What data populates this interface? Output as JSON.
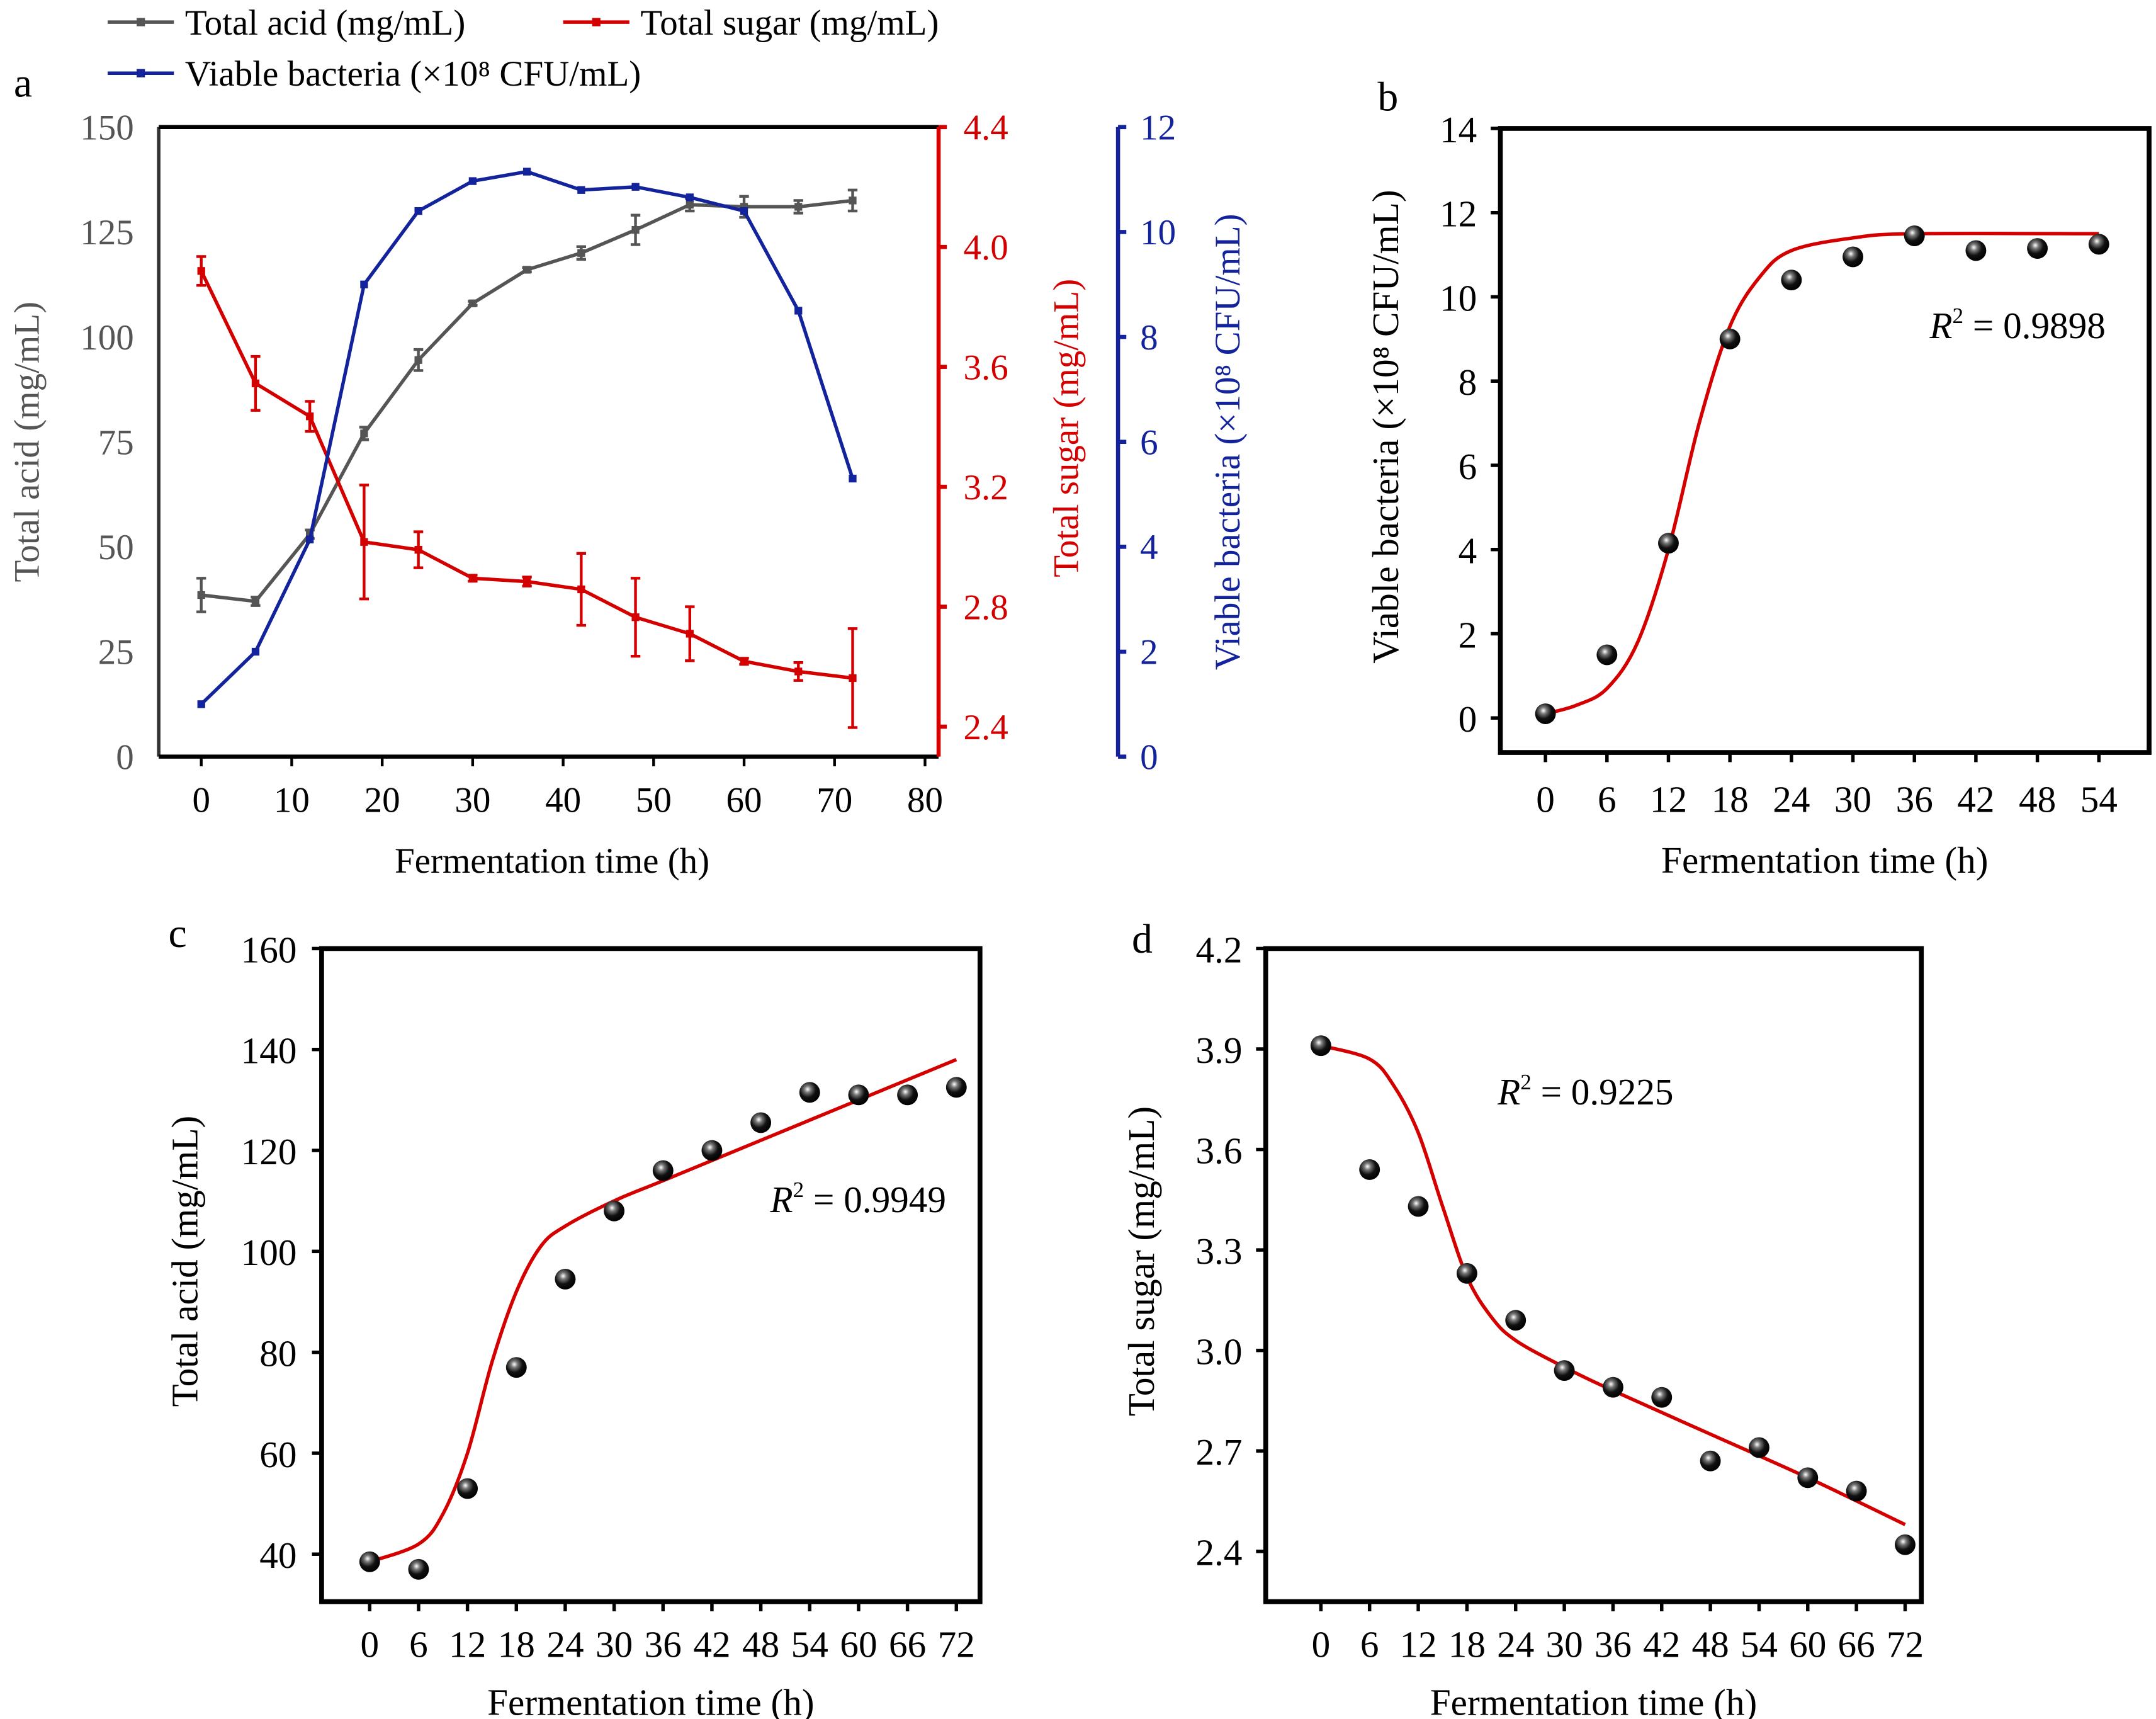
{
  "colors": {
    "acid": "#555555",
    "sugar": "#d40000",
    "bacteria": "#13239c",
    "fit": "#d40000",
    "axis": "#000000"
  },
  "chart_data": [
    {
      "panel": "a",
      "type": "line",
      "xlabel": "Fermentation time (h)",
      "xlim": [
        -4.7,
        81.5
      ],
      "xticks": [
        0,
        10,
        20,
        30,
        40,
        50,
        60,
        70,
        80
      ],
      "x": [
        0,
        6,
        12,
        18,
        24,
        30,
        36,
        42,
        48,
        54,
        60,
        66,
        72
      ],
      "legend": {
        "placement": "top-left"
      },
      "series": [
        {
          "name": "Total acid (mg/mL)",
          "axis": "left",
          "color": "#555555",
          "ylabel": "Total acid (mg/mL)",
          "ylim": [
            0,
            150
          ],
          "yticks": [
            0,
            25,
            50,
            75,
            100,
            125,
            150
          ],
          "values": [
            38.5,
            37,
            53,
            77,
            94.5,
            108,
            116,
            120,
            125.5,
            131.5,
            131,
            131,
            132.5
          ],
          "errors": [
            4,
            1,
            1,
            1.5,
            2.5,
            0.5,
            0.5,
            1.5,
            3.5,
            1.5,
            2.5,
            1.5,
            2.5
          ]
        },
        {
          "name": "Total sugar (mg/mL)",
          "axis": "right-1",
          "color": "#d40000",
          "ylabel": "Total sugar (mg/mL)",
          "ylim": [
            2.3,
            4.4
          ],
          "yticks": [
            "2.4",
            "2.8",
            "3.2",
            "3.6",
            "4.0",
            "4.4"
          ],
          "values": [
            3.92,
            3.545,
            3.435,
            3.016,
            2.99,
            2.895,
            2.884,
            2.858,
            2.765,
            2.71,
            2.618,
            2.584,
            2.562
          ],
          "errors": [
            0.048,
            0.09,
            0.05,
            0.19,
            0.06,
            0.01,
            0.015,
            0.12,
            0.13,
            0.09,
            0.01,
            0.03,
            0.165
          ]
        },
        {
          "name": "Viable bacteria (×10⁸ CFU/mL)",
          "axis": "right-2",
          "color": "#13239c",
          "ylabel": "Viable bacteria (×10⁸ CFU/mL)",
          "ylim": [
            0,
            12
          ],
          "yticks": [
            0,
            2,
            4,
            6,
            8,
            10,
            12
          ],
          "values": [
            1.0,
            2.0,
            4.14,
            9.0,
            10.4,
            10.97,
            11.15,
            10.8,
            10.86,
            10.66,
            10.4,
            8.5,
            5.3
          ]
        }
      ]
    },
    {
      "panel": "b",
      "type": "scatter",
      "xlabel": "Fermentation time (h)",
      "ylabel": "Viable bacteria (×10⁸ CFU/mL)",
      "xlim": [
        -4.4,
        58.9
      ],
      "ylim": [
        -0.82,
        14
      ],
      "xticks": [
        0,
        6,
        12,
        18,
        24,
        30,
        36,
        42,
        48,
        54
      ],
      "yticks": [
        0,
        2,
        4,
        6,
        8,
        10,
        12,
        14
      ],
      "x": [
        0,
        6,
        12,
        18,
        24,
        30,
        36,
        42,
        48,
        54
      ],
      "values": [
        0.1,
        1.5,
        4.15,
        9.0,
        10.4,
        10.95,
        11.45,
        11.1,
        11.15,
        11.25
      ],
      "fit": {
        "x": [
          0,
          3,
          6,
          9,
          12,
          15,
          18,
          21,
          24,
          30,
          36,
          54
        ],
        "y": [
          0.1,
          0.3,
          0.7,
          1.8,
          4.0,
          7.0,
          9.3,
          10.5,
          11.1,
          11.4,
          11.5,
          11.5
        ]
      },
      "annotation": {
        "r_label": "R",
        "sup": "2",
        "value": " = 0.9898"
      }
    },
    {
      "panel": "c",
      "type": "scatter",
      "xlabel": "Fermentation time (h)",
      "ylabel": "Total acid (mg/mL)",
      "xlim": [
        -5.9,
        74.9
      ],
      "ylim": [
        30.6,
        160
      ],
      "xticks": [
        0,
        6,
        12,
        18,
        24,
        30,
        36,
        42,
        48,
        54,
        60,
        66,
        72
      ],
      "yticks": [
        40,
        60,
        80,
        100,
        120,
        140,
        160
      ],
      "x": [
        0,
        6,
        12,
        18,
        24,
        30,
        36,
        42,
        48,
        54,
        60,
        66,
        72
      ],
      "values": [
        38.5,
        37,
        53,
        77,
        94.5,
        108,
        116,
        120,
        125.5,
        131.5,
        131,
        131,
        132.5
      ],
      "fit": {
        "x": [
          0,
          6,
          9,
          12,
          15,
          18,
          21,
          24,
          30,
          36,
          48,
          60,
          72
        ],
        "y": [
          38.5,
          42,
          48,
          60,
          78,
          92,
          101,
          105,
          110,
          114,
          122,
          130,
          138
        ]
      },
      "annotation": {
        "r_label": "R",
        "sup": "2",
        "value": " = 0.9949"
      }
    },
    {
      "panel": "d",
      "type": "scatter",
      "xlabel": "Fermentation time (h)",
      "ylabel": "Total sugar (mg/mL)",
      "xlim": [
        -6.8,
        74.0
      ],
      "ylim": [
        2.25,
        4.2
      ],
      "xticks": [
        0,
        6,
        12,
        18,
        24,
        30,
        36,
        42,
        48,
        54,
        60,
        66,
        72
      ],
      "yticks": [
        "2.4",
        "2.7",
        "3.0",
        "3.3",
        "3.6",
        "3.9",
        "4.2"
      ],
      "x": [
        0,
        6,
        12,
        18,
        24,
        30,
        36,
        42,
        48,
        54,
        60,
        66,
        72
      ],
      "values": [
        3.91,
        3.54,
        3.43,
        3.23,
        3.09,
        2.94,
        2.89,
        2.86,
        2.67,
        2.71,
        2.62,
        2.58,
        2.42
      ],
      "fit": {
        "x": [
          0,
          6,
          9,
          12,
          15,
          18,
          21,
          24,
          30,
          36,
          48,
          60,
          72
        ],
        "y": [
          3.91,
          3.87,
          3.79,
          3.65,
          3.43,
          3.22,
          3.1,
          3.03,
          2.95,
          2.88,
          2.75,
          2.62,
          2.48
        ]
      },
      "annotation": {
        "r_label": "R",
        "sup": "2",
        "value": " = 0.9225"
      }
    }
  ]
}
